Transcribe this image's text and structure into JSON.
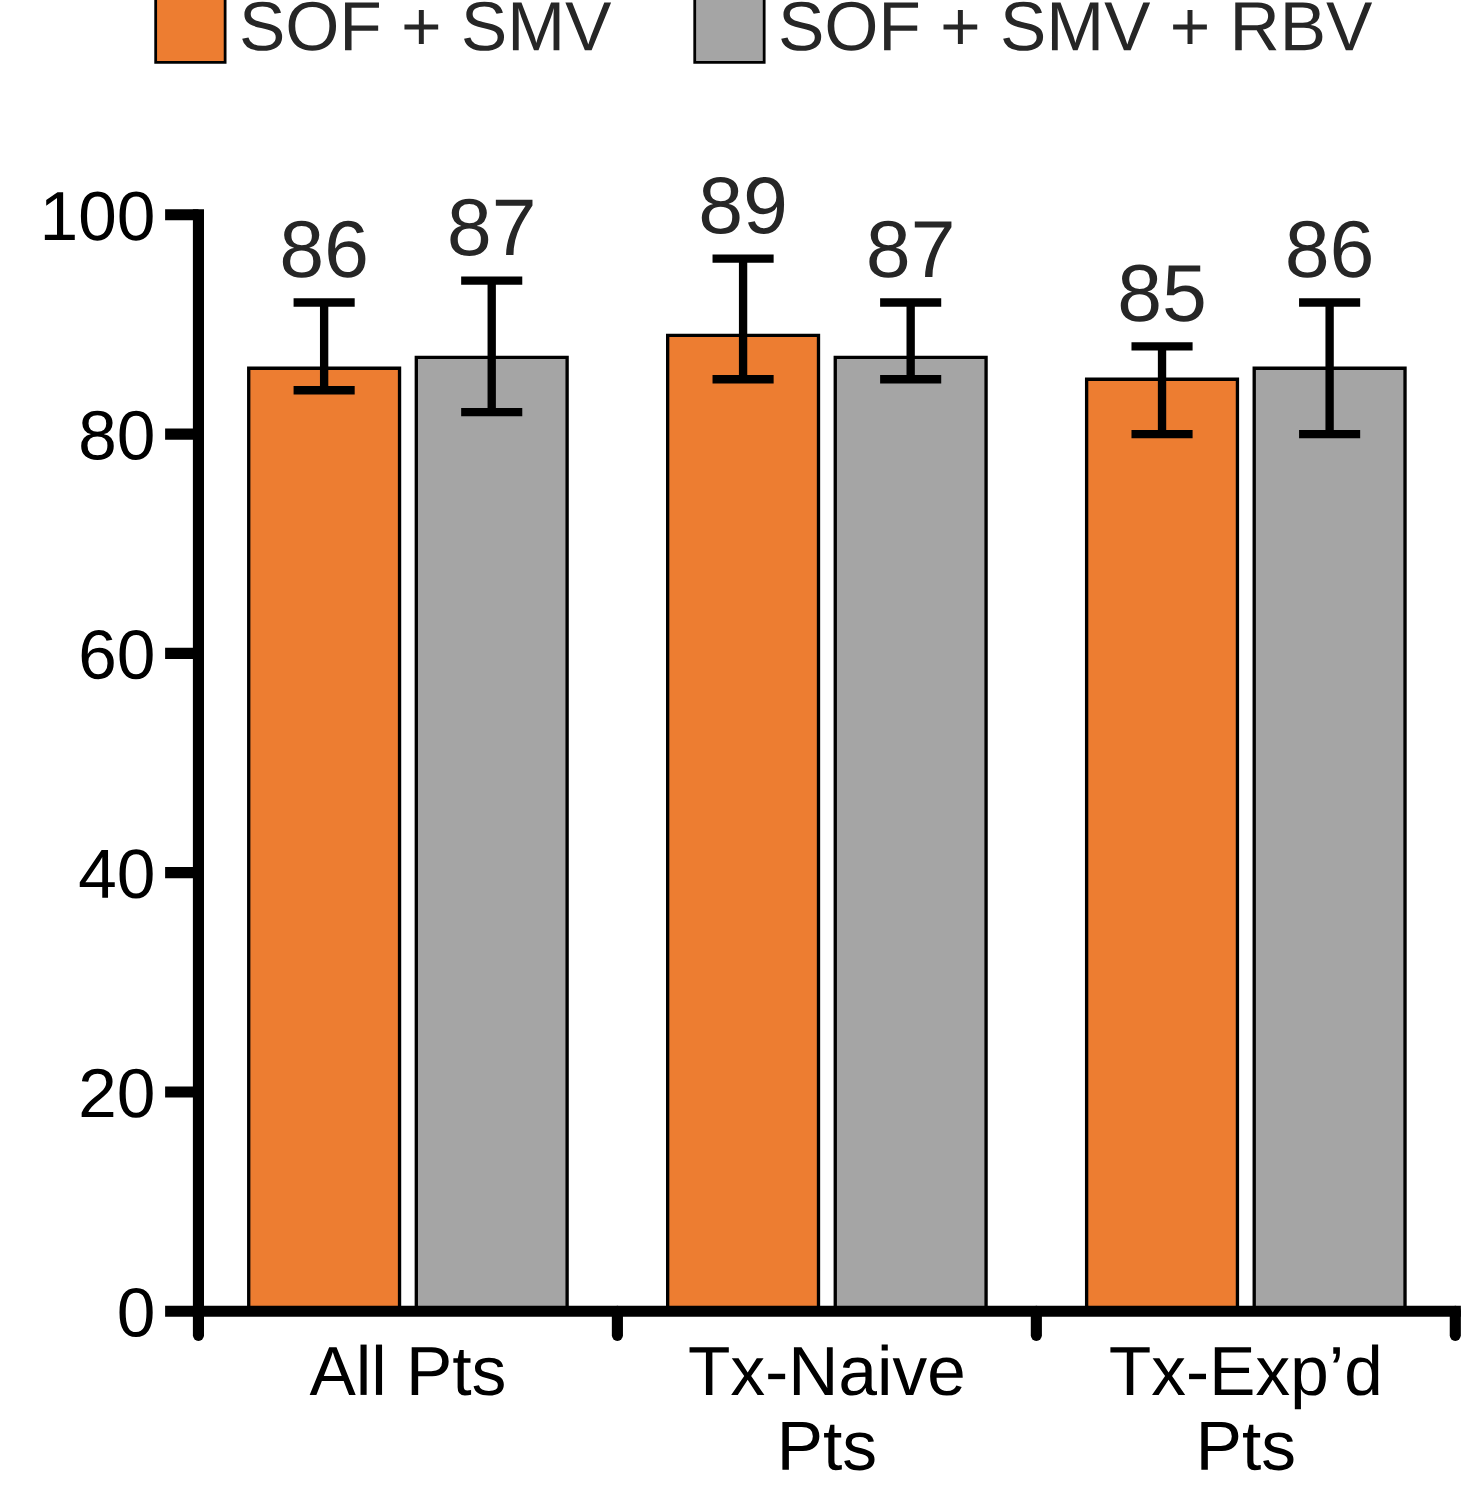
{
  "chart_data": {
    "type": "bar",
    "categories": [
      "All Pts",
      "Tx-Naive\nPts",
      "Tx-Exp’d\nPts"
    ],
    "series": [
      {
        "name": "SOF + SMV",
        "color": "#ed7d31",
        "values": [
          86,
          89,
          85
        ],
        "errors": [
          [
            84,
            92
          ],
          [
            85,
            96
          ],
          [
            80,
            88
          ]
        ]
      },
      {
        "name": "SOF + SMV + RBV",
        "color": "#a5a5a5",
        "values": [
          87,
          87,
          86
        ],
        "errors": [
          [
            82,
            94
          ],
          [
            85,
            92
          ],
          [
            80,
            92
          ]
        ]
      }
    ],
    "ylim": [
      0,
      100
    ],
    "yticks": [
      0,
      20,
      40,
      60,
      80,
      100
    ],
    "grid": false,
    "legend": "top",
    "data_labels": true
  }
}
